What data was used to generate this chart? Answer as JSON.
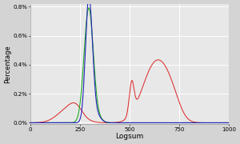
{
  "title": "",
  "xlabel": "Logsum",
  "ylabel": "Percentage",
  "xlim": [
    0,
    1000
  ],
  "ylim": [
    -0.0001,
    0.0082
  ],
  "yticks": [
    0.0,
    0.002,
    0.004,
    0.006,
    0.008
  ],
  "ytick_labels": [
    "0.0%",
    "0.2%",
    "0.4%",
    "0.6%",
    "0.8%"
  ],
  "xticks": [
    0,
    250,
    500,
    750,
    1000
  ],
  "background_color": "#d4d4d4",
  "plot_bg_color": "#e8e8e8",
  "grid_color": "#ffffff",
  "line_blue": "#2222bb",
  "line_green": "#22aa22",
  "line_red": "#dd2222"
}
